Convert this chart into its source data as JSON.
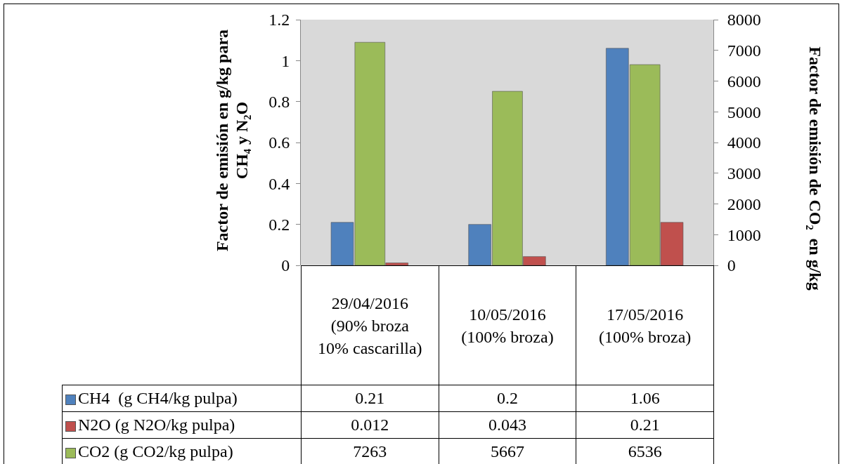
{
  "chart_data": {
    "type": "bar",
    "categories": [
      "29/04/2016 (90% broza 10% cascarilla)",
      "10/05/2016 (100% broza)",
      "17/05/2016 (100% broza)"
    ],
    "ylabel": "Factor de emisión en g/kg para CH₄ y N₂O",
    "y2label": "Factor de emisión de CO₂  en g/kg",
    "ylim": [
      0,
      1.2
    ],
    "yticks": [
      0,
      0.2,
      0.4,
      0.6,
      0.8,
      1,
      1.2
    ],
    "y2lim": [
      0,
      8000
    ],
    "y2ticks": [
      0,
      1000,
      2000,
      3000,
      4000,
      5000,
      6000,
      7000,
      8000
    ],
    "data_labels": true,
    "legend": "bottom",
    "series": [
      {
        "name": "CH4  (g CH4/kg pulpa)",
        "color": "#4f81bd",
        "values": [
          0.21,
          0.2,
          1.06
        ]
      },
      {
        "name": "N2O (g N2O/kg pulpa)",
        "color": "#c0504d",
        "values": [
          0.012,
          0.043,
          0.21
        ]
      },
      {
        "name": "CO2 (g CO2/kg pulpa)",
        "color": "#9bbb59",
        "values": [
          7263,
          5667,
          6536
        ],
        "axis": "y2"
      }
    ]
  }
}
